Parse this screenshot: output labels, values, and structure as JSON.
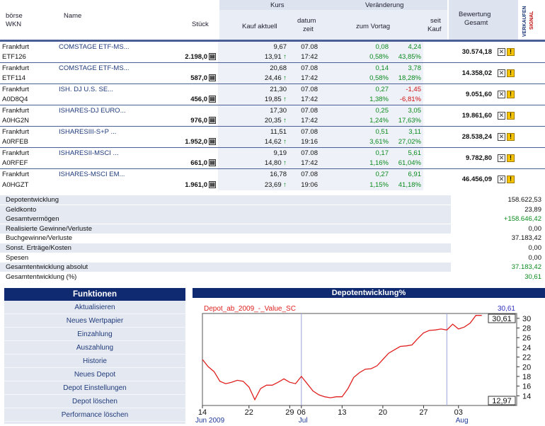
{
  "header": {
    "boerse_label": "börse",
    "wkn_label": "WKN",
    "name_label": "Name",
    "stueck_label": "Stück",
    "kurs_label": "Kurs",
    "kauf_aktuell_label": "Kauf aktuell",
    "datum_label": "datum",
    "zeit_label": "zeit",
    "veraenderung_label": "Veränderung",
    "zum_vortag_label": "zum Vortag",
    "seit_label": "seit",
    "kauf_label": "Kauf",
    "bewertung_label": "Bewertung",
    "gesamt_label": "Gesamt",
    "verkaufen_label": "VERKAUFEN",
    "signal_label": "SIGNAL"
  },
  "positions": [
    {
      "exchange": "Frankfurt",
      "wkn": "ETF126",
      "name": "COMSTAGE ETF-MS...",
      "qty": "2.198,0",
      "price": "9,67",
      "buy": "13,91",
      "date": "07.08",
      "time": "17:42",
      "change_abs": "0,08",
      "change_pct": "0,58%",
      "since_abs": "4,24",
      "since_pct": "43,85%",
      "value": "30.574,18",
      "neg": false
    },
    {
      "exchange": "Frankfurt",
      "wkn": "ETF114",
      "name": "COMSTAGE ETF-MS...",
      "qty": "587,0",
      "price": "20,68",
      "buy": "24,46",
      "date": "07.08",
      "time": "17:42",
      "change_abs": "0,14",
      "change_pct": "0,58%",
      "since_abs": "3,78",
      "since_pct": "18,28%",
      "value": "14.358,02",
      "neg": false
    },
    {
      "exchange": "Frankfurt",
      "wkn": "A0D8Q4",
      "name": "ISH. DJ U.S. SE...",
      "qty": "456,0",
      "price": "21,30",
      "buy": "19,85",
      "date": "07.08",
      "time": "17:42",
      "change_abs": "0,27",
      "change_pct": "1,38%",
      "since_abs": "-1,45",
      "since_pct": "-6,81%",
      "value": "9.051,60",
      "neg": true
    },
    {
      "exchange": "Frankfurt",
      "wkn": "A0HG2N",
      "name": "ISHARES-DJ EURO...",
      "qty": "976,0",
      "price": "17,30",
      "buy": "20,35",
      "date": "07.08",
      "time": "17:42",
      "change_abs": "0,25",
      "change_pct": "1,24%",
      "since_abs": "3,05",
      "since_pct": "17,63%",
      "value": "19.861,60",
      "neg": false
    },
    {
      "exchange": "Frankfurt",
      "wkn": "A0RFEB",
      "name": "ISHARESIII-S+P ...",
      "qty": "1.952,0",
      "price": "11,51",
      "buy": "14,62",
      "date": "07.08",
      "time": "19:16",
      "change_abs": "0,51",
      "change_pct": "3,61%",
      "since_abs": "3,11",
      "since_pct": "27,02%",
      "value": "28.538,24",
      "neg": false
    },
    {
      "exchange": "Frankfurt",
      "wkn": "A0RFEF",
      "name": "ISHARESII-MSCI ...",
      "qty": "661,0",
      "price": "9,19",
      "buy": "14,80",
      "date": "07.08",
      "time": "17:42",
      "change_abs": "0,17",
      "change_pct": "1,16%",
      "since_abs": "5,61",
      "since_pct": "61,04%",
      "value": "9.782,80",
      "neg": false
    },
    {
      "exchange": "Frankfurt",
      "wkn": "A0HGZT",
      "name": "ISHARES-MSCI EM...",
      "qty": "1.961,0",
      "price": "16,78",
      "buy": "23,69",
      "date": "07.08",
      "time": "19:06",
      "change_abs": "0,27",
      "change_pct": "1,15%",
      "since_abs": "6,91",
      "since_pct": "41,18%",
      "value": "46.456,09",
      "neg": false
    }
  ],
  "summary": [
    {
      "label": "Depotentwicklung",
      "value": "158.622,53",
      "color": "#111111",
      "band": true
    },
    {
      "label": "Geldkonto",
      "value": "23,89",
      "color": "#111111",
      "band": true
    },
    {
      "label": "Gesamtvermögen",
      "value": "+158.646,42",
      "color": "#0a8a1e",
      "band": true
    },
    {
      "label": "Realisierte Gewinne/Verluste",
      "value": "0,00",
      "color": "#111111",
      "band": true
    },
    {
      "label": "Buchgewinne/Verluste",
      "value": "37.183,42",
      "color": "#111111",
      "band": false
    },
    {
      "label": "Sonst. Erträge/Kosten",
      "value": "0,00",
      "color": "#111111",
      "band": true
    },
    {
      "label": "Spesen",
      "value": "0,00",
      "color": "#111111",
      "band": false
    },
    {
      "label": "Gesamtentwicklung absolut",
      "value": "37.183,42",
      "color": "#0a8a1e",
      "band": true
    },
    {
      "label": "Gesamtentwicklung (%)",
      "value": "30,61",
      "color": "#0a8a1e",
      "band": false
    }
  ],
  "functions": {
    "title": "Funktionen",
    "items": [
      "Aktualisieren",
      "Neues Wertpapier",
      "Einzahlung",
      "Auszahlung",
      "Historie",
      "Neues Depot",
      "Depot Einstellungen",
      "Depot löschen",
      "Performance löschen"
    ]
  },
  "chart_data": {
    "type": "line",
    "title": "Depotentwicklung%",
    "series_name": "Depot_ab_2009_-_Value_SC",
    "last_value_label": "30,61",
    "max_label": "30,61",
    "min_label": "12,97",
    "ylim": [
      12,
      31
    ],
    "yticks": [
      14,
      16,
      18,
      20,
      22,
      24,
      26,
      28,
      30
    ],
    "xlim": [
      0,
      54
    ],
    "xticks": [
      {
        "x": 0,
        "label": "14"
      },
      {
        "x": 8,
        "label": "22"
      },
      {
        "x": 15,
        "label": "29"
      },
      {
        "x": 17,
        "label": "06"
      },
      {
        "x": 24,
        "label": "13"
      },
      {
        "x": 31,
        "label": "20"
      },
      {
        "x": 38,
        "label": "27"
      },
      {
        "x": 44,
        "label": "03"
      }
    ],
    "month_labels": [
      {
        "x": 0,
        "label": "Jun 2009"
      },
      {
        "x": 17,
        "label": "Jul"
      },
      {
        "x": 44,
        "label": "Aug"
      }
    ],
    "vlines": [
      17,
      42
    ],
    "x": [
      0,
      1,
      2,
      3,
      4,
      5,
      6,
      7,
      8,
      9,
      10,
      11,
      12,
      13,
      14,
      15,
      16,
      17,
      18,
      19,
      20,
      21,
      22,
      23,
      24,
      25,
      26,
      27,
      28,
      29,
      30,
      31,
      32,
      33,
      34,
      35,
      36,
      37,
      38,
      39,
      40,
      41,
      42,
      43,
      44,
      45,
      46,
      47,
      48
    ],
    "values": [
      21.5,
      20.0,
      19.0,
      17.0,
      16.5,
      16.8,
      17.2,
      17.0,
      15.8,
      13.2,
      15.5,
      16.2,
      16.2,
      16.8,
      17.5,
      16.8,
      16.5,
      18.0,
      16.5,
      15.0,
      14.2,
      13.8,
      13.6,
      13.8,
      13.8,
      15.5,
      17.8,
      18.8,
      19.5,
      19.6,
      20.2,
      21.5,
      22.8,
      23.5,
      24.2,
      24.3,
      24.5,
      25.8,
      27.0,
      27.5,
      27.6,
      27.8,
      27.6,
      28.8,
      27.8,
      28.2,
      29.0,
      30.61,
      30.61
    ]
  }
}
